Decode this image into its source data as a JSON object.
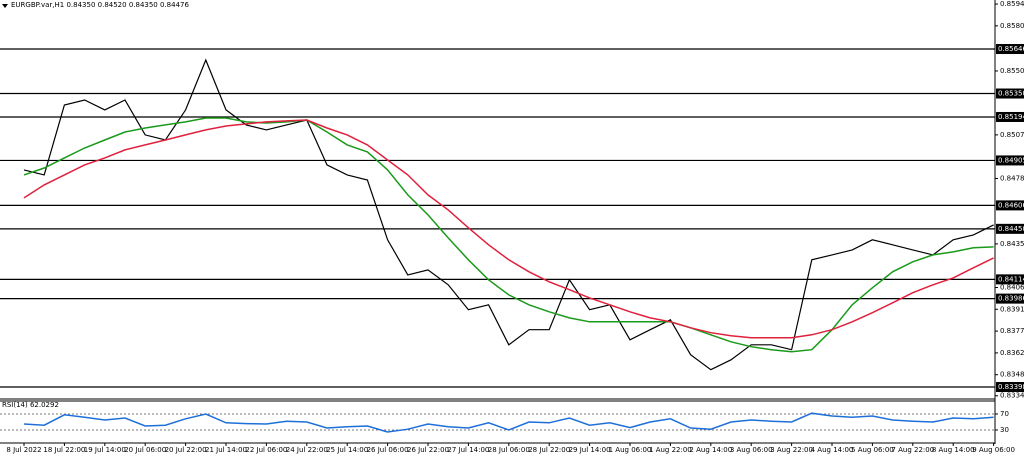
{
  "chart_data": [
    {
      "type": "line",
      "title": "EURGBP.var,H1 0.84350 0.84520 0.84350 0.84476",
      "categories": [
        "8 Jul 2022",
        null,
        "18 Jul 22:00",
        null,
        "19 Jul 14:00",
        null,
        "20 Jul 06:00",
        null,
        "20 Jul 22:00",
        null,
        "21 Jul 14:00",
        null,
        "22 Jul 06:00",
        null,
        "24 Jul 22:00",
        null,
        "25 Jul 14:00",
        null,
        "26 Jul 06:00",
        null,
        "26 Jul 22:00",
        null,
        "27 Jul 14:00",
        null,
        "28 Jul 06:00",
        null,
        "28 Jul 22:00",
        null,
        "29 Jul 14:00",
        null,
        "1 Aug 06:00",
        null,
        "1 Aug 22:00",
        null,
        "2 Aug 14:00",
        null,
        "3 Aug 06:00",
        null,
        "3 Aug 22:00",
        null,
        "4 Aug 14:00",
        null,
        "5 Aug 06:00",
        null,
        "7 Aug 22:00",
        null,
        "8 Aug 14:00",
        null,
        "9 Aug 06:00"
      ],
      "series": [
        {
          "color": "#000000",
          "values": [
            0.84842,
            0.84809,
            0.85274,
            0.85307,
            0.85241,
            0.85307,
            0.85075,
            0.85041,
            0.85241,
            0.85573,
            0.85241,
            0.85141,
            0.85108,
            0.85141,
            0.85174,
            0.84875,
            0.84809,
            0.84775,
            0.84377,
            0.84144,
            0.84177,
            0.84078,
            0.83912,
            0.83945,
            0.83679,
            0.83779,
            0.83779,
            0.84111,
            0.83912,
            0.83945,
            0.83712,
            0.83779,
            0.83845,
            0.83613,
            0.83513,
            0.83579,
            0.83679,
            0.83679,
            0.83646,
            0.84244,
            0.84277,
            0.8431,
            0.84377,
            0.84344,
            0.8431,
            0.84277,
            0.84377,
            0.8441,
            0.84476
          ]
        },
        {
          "color": "#1a9a1a",
          "values": [
            0.84809,
            0.84855,
            0.84922,
            0.84988,
            0.85041,
            0.85094,
            0.85121,
            0.85141,
            0.85161,
            0.85187,
            0.85187,
            0.85161,
            0.85154,
            0.85161,
            0.85174,
            0.85094,
            0.85008,
            0.84962,
            0.84842,
            0.84676,
            0.84543,
            0.8439,
            0.84244,
            0.84111,
            0.84011,
            0.83945,
            0.83898,
            0.83858,
            0.83832,
            0.83832,
            0.83832,
            0.83832,
            0.83832,
            0.83792,
            0.83745,
            0.83699,
            0.83666,
            0.83646,
            0.83633,
            0.83646,
            0.83779,
            0.83945,
            0.84058,
            0.84164,
            0.84231,
            0.84277,
            0.84297,
            0.84324,
            0.8433
          ]
        },
        {
          "color": "#e0203c",
          "values": [
            0.84656,
            0.84742,
            0.84809,
            0.84875,
            0.84922,
            0.84975,
            0.85008,
            0.85041,
            0.85075,
            0.85108,
            0.85134,
            0.85148,
            0.85161,
            0.85168,
            0.85174,
            0.85121,
            0.85075,
            0.85008,
            0.84908,
            0.84809,
            0.84676,
            0.84576,
            0.84457,
            0.84344,
            0.84244,
            0.84164,
            0.84098,
            0.84045,
            0.83991,
            0.83945,
            0.83898,
            0.83858,
            0.83832,
            0.83792,
            0.83759,
            0.83739,
            0.83726,
            0.83726,
            0.83726,
            0.83745,
            0.83779,
            0.83832,
            0.83892,
            0.83958,
            0.84025,
            0.84078,
            0.84124,
            0.84191,
            0.84257
          ]
        }
      ],
      "ylim": [
        0.83325,
        0.85972
      ],
      "yticks": [
        0.85945,
        {
          "value": 0.858,
          "label": "0.85800"
        },
        {
          "value": 0.855,
          "label": "0.85500"
        },
        0.85075,
        0.84785,
        0.8435,
        {
          "value": 0.8406,
          "label": "0.84060"
        },
        0.83915,
        {
          "value": 0.8377,
          "label": "0.83770"
        },
        0.83625,
        {
          "value": 0.8348,
          "label": "0.83480"
        },
        {
          "value": 0.8334,
          "label": "0.83340"
        }
      ],
      "levels": [
        0.85646,
        {
          "value": 0.8535,
          "label": "0.85350"
        },
        0.85194,
        0.84905,
        0.84606,
        {
          "value": 0.8445,
          "label": "0.84450"
        },
        0.84114,
        0.83986,
        0.83398
      ]
    },
    {
      "type": "line",
      "title": "RSI(14) 62.0292",
      "series": [
        {
          "color": "#1e6fd9",
          "values": [
            45,
            42,
            68,
            62,
            55,
            60,
            40,
            42,
            58,
            70,
            48,
            46,
            45,
            52,
            50,
            35,
            38,
            40,
            25,
            32,
            45,
            38,
            35,
            48,
            30,
            50,
            48,
            60,
            42,
            48,
            36,
            50,
            58,
            35,
            32,
            50,
            55,
            52,
            50,
            72,
            65,
            62,
            65,
            55,
            52,
            50,
            60,
            58,
            62.0292
          ]
        }
      ],
      "ylim": [
        0,
        100
      ],
      "yticks": [
        70,
        30
      ]
    }
  ]
}
